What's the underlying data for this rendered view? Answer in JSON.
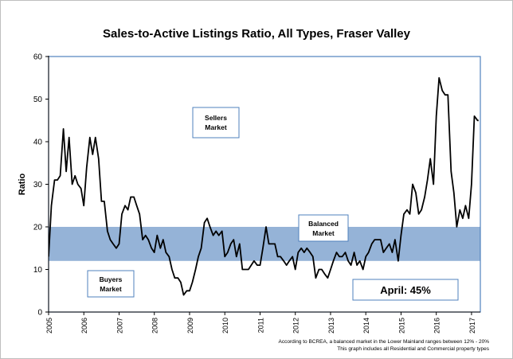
{
  "chart_data": {
    "type": "line",
    "title": "Sales-to-Active Listings Ratio, All Types, Fraser Valley",
    "xlabel": "",
    "ylabel": "Ratio",
    "xlim": [
      2005.0,
      2017.25
    ],
    "ylim": [
      0,
      60
    ],
    "yticks": [
      0,
      10,
      20,
      30,
      40,
      50,
      60
    ],
    "xticks": [
      "2005",
      "2006",
      "2007",
      "2008",
      "2009",
      "2010",
      "2011",
      "2012",
      "2013",
      "2014",
      "2015",
      "2016",
      "2017"
    ],
    "grid": false,
    "band": {
      "label_line1": "Balanced",
      "label_line2": "Market",
      "low": 12,
      "high": 20,
      "color": "#95b3d7"
    },
    "annotations": {
      "sellers_line1": "Sellers",
      "sellers_line2": "Market",
      "buyers_line1": "Buyers",
      "buyers_line2": "Market",
      "current_label": "April: 45%"
    },
    "colors": {
      "line": "#000000",
      "band": "#95b3d7",
      "box_border": "#4f81bd",
      "axes": "#000000"
    },
    "series": [
      {
        "values": [
          [
            2005.0,
            13
          ],
          [
            2005.08,
            25
          ],
          [
            2005.17,
            31
          ],
          [
            2005.25,
            31
          ],
          [
            2005.33,
            32
          ],
          [
            2005.42,
            43
          ],
          [
            2005.5,
            33
          ],
          [
            2005.58,
            41
          ],
          [
            2005.67,
            30
          ],
          [
            2005.75,
            32
          ],
          [
            2005.83,
            30
          ],
          [
            2005.92,
            29
          ],
          [
            2006.0,
            25
          ],
          [
            2006.08,
            34
          ],
          [
            2006.17,
            41
          ],
          [
            2006.25,
            37
          ],
          [
            2006.33,
            41
          ],
          [
            2006.42,
            36
          ],
          [
            2006.5,
            26
          ],
          [
            2006.58,
            26
          ],
          [
            2006.67,
            19
          ],
          [
            2006.75,
            17
          ],
          [
            2006.83,
            16
          ],
          [
            2006.92,
            15
          ],
          [
            2007.0,
            16
          ],
          [
            2007.08,
            23
          ],
          [
            2007.17,
            25
          ],
          [
            2007.25,
            24
          ],
          [
            2007.33,
            27
          ],
          [
            2007.42,
            27
          ],
          [
            2007.5,
            25
          ],
          [
            2007.58,
            23
          ],
          [
            2007.67,
            17
          ],
          [
            2007.75,
            18
          ],
          [
            2007.83,
            17
          ],
          [
            2007.92,
            15
          ],
          [
            2008.0,
            14
          ],
          [
            2008.08,
            18
          ],
          [
            2008.17,
            15
          ],
          [
            2008.25,
            17
          ],
          [
            2008.33,
            14
          ],
          [
            2008.42,
            13
          ],
          [
            2008.5,
            10
          ],
          [
            2008.58,
            8
          ],
          [
            2008.67,
            8
          ],
          [
            2008.75,
            7
          ],
          [
            2008.83,
            4
          ],
          [
            2008.92,
            5
          ],
          [
            2009.0,
            5
          ],
          [
            2009.08,
            7
          ],
          [
            2009.17,
            10
          ],
          [
            2009.25,
            13
          ],
          [
            2009.33,
            15
          ],
          [
            2009.42,
            21
          ],
          [
            2009.5,
            22
          ],
          [
            2009.58,
            20
          ],
          [
            2009.67,
            18
          ],
          [
            2009.75,
            19
          ],
          [
            2009.83,
            18
          ],
          [
            2009.92,
            19
          ],
          [
            2010.0,
            13
          ],
          [
            2010.08,
            14
          ],
          [
            2010.17,
            16
          ],
          [
            2010.25,
            17
          ],
          [
            2010.33,
            13
          ],
          [
            2010.42,
            16
          ],
          [
            2010.5,
            10
          ],
          [
            2010.58,
            10
          ],
          [
            2010.67,
            10
          ],
          [
            2010.75,
            11
          ],
          [
            2010.83,
            12
          ],
          [
            2010.92,
            11
          ],
          [
            2011.0,
            11
          ],
          [
            2011.08,
            15
          ],
          [
            2011.17,
            20
          ],
          [
            2011.25,
            16
          ],
          [
            2011.33,
            16
          ],
          [
            2011.42,
            16
          ],
          [
            2011.5,
            13
          ],
          [
            2011.58,
            13
          ],
          [
            2011.67,
            12
          ],
          [
            2011.75,
            11
          ],
          [
            2011.83,
            12
          ],
          [
            2011.92,
            13
          ],
          [
            2012.0,
            10
          ],
          [
            2012.08,
            14
          ],
          [
            2012.17,
            15
          ],
          [
            2012.25,
            14
          ],
          [
            2012.33,
            15
          ],
          [
            2012.42,
            14
          ],
          [
            2012.5,
            13
          ],
          [
            2012.58,
            8
          ],
          [
            2012.67,
            10
          ],
          [
            2012.75,
            10
          ],
          [
            2012.83,
            9
          ],
          [
            2012.92,
            8
          ],
          [
            2013.0,
            10
          ],
          [
            2013.08,
            12
          ],
          [
            2013.17,
            14
          ],
          [
            2013.25,
            13
          ],
          [
            2013.33,
            13
          ],
          [
            2013.42,
            14
          ],
          [
            2013.5,
            12
          ],
          [
            2013.58,
            11
          ],
          [
            2013.67,
            14
          ],
          [
            2013.75,
            11
          ],
          [
            2013.83,
            12
          ],
          [
            2013.92,
            10
          ],
          [
            2014.0,
            13
          ],
          [
            2014.08,
            14
          ],
          [
            2014.17,
            16
          ],
          [
            2014.25,
            17
          ],
          [
            2014.33,
            17
          ],
          [
            2014.42,
            17
          ],
          [
            2014.5,
            14
          ],
          [
            2014.58,
            15
          ],
          [
            2014.67,
            16
          ],
          [
            2014.75,
            14
          ],
          [
            2014.83,
            17
          ],
          [
            2014.92,
            12
          ],
          [
            2015.0,
            18
          ],
          [
            2015.08,
            23
          ],
          [
            2015.17,
            24
          ],
          [
            2015.25,
            23
          ],
          [
            2015.33,
            30
          ],
          [
            2015.42,
            28
          ],
          [
            2015.5,
            23
          ],
          [
            2015.58,
            24
          ],
          [
            2015.67,
            27
          ],
          [
            2015.75,
            31
          ],
          [
            2015.83,
            36
          ],
          [
            2015.92,
            30
          ],
          [
            2016.0,
            46
          ],
          [
            2016.08,
            55
          ],
          [
            2016.17,
            52
          ],
          [
            2016.25,
            51
          ],
          [
            2016.33,
            51
          ],
          [
            2016.42,
            33
          ],
          [
            2016.5,
            28
          ],
          [
            2016.58,
            20
          ],
          [
            2016.67,
            24
          ],
          [
            2016.75,
            22
          ],
          [
            2016.83,
            25
          ],
          [
            2016.92,
            22
          ],
          [
            2017.0,
            30
          ],
          [
            2017.08,
            46
          ],
          [
            2017.17,
            45
          ],
          [
            2017.2,
            45
          ]
        ]
      }
    ]
  },
  "footnotes": {
    "line1": "According to BCREA, a balanced market in the Lower Mainland ranges between 12% - 20%",
    "line2": "This graph includes all Residential and Commercial property types"
  }
}
